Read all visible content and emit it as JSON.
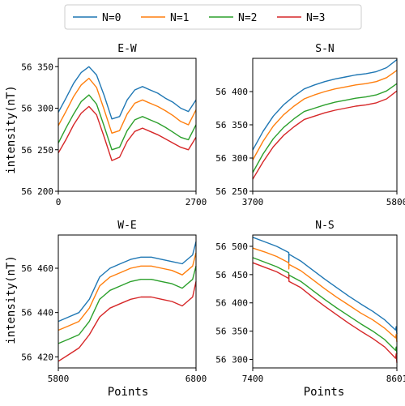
{
  "colors": {
    "N=0": "#1f77b4",
    "N=1": "#ff7f0e",
    "N=2": "#2ca02c",
    "N=3": "#d62728"
  },
  "legend": {
    "placement": "top-center",
    "entries": [
      "N=0",
      "N=1",
      "N=2",
      "N=3"
    ]
  },
  "shared_labels": {
    "xlabel": "Points",
    "ylabel": "intensity(nT)"
  },
  "chart_data": [
    {
      "type": "line",
      "title": "E-W",
      "xlim": [
        0,
        2700
      ],
      "ylim": [
        56200,
        56360
      ],
      "xticks": [
        0,
        2700
      ],
      "yticks": [
        56200,
        56250,
        56300,
        56350
      ],
      "x": [
        0,
        150,
        300,
        450,
        600,
        750,
        900,
        1050,
        1200,
        1350,
        1500,
        1650,
        1800,
        1950,
        2100,
        2250,
        2400,
        2550,
        2700
      ],
      "series": [
        {
          "name": "N=0",
          "values": [
            56295,
            56312,
            56330,
            56343,
            56350,
            56340,
            56315,
            56287,
            56290,
            56310,
            56322,
            56326,
            56322,
            56318,
            56312,
            56307,
            56300,
            56296,
            56310
          ]
        },
        {
          "name": "N=1",
          "values": [
            56279,
            56296,
            56314,
            56328,
            56336,
            56325,
            56298,
            56270,
            56273,
            56293,
            56306,
            56310,
            56306,
            56302,
            56297,
            56291,
            56284,
            56280,
            56298
          ]
        },
        {
          "name": "N=2",
          "values": [
            56258,
            56276,
            56293,
            56308,
            56316,
            56305,
            56278,
            56250,
            56253,
            56273,
            56286,
            56290,
            56286,
            56282,
            56277,
            56271,
            56265,
            56262,
            56280
          ]
        },
        {
          "name": "N=3",
          "values": [
            56246,
            56262,
            56280,
            56294,
            56302,
            56292,
            56265,
            56237,
            56241,
            56260,
            56272,
            56276,
            56272,
            56268,
            56263,
            56258,
            56253,
            56250,
            56265
          ]
        }
      ]
    },
    {
      "type": "line",
      "title": "S-N",
      "xlim": [
        3700,
        5800
      ],
      "ylim": [
        56250,
        56450
      ],
      "xticks": [
        3700,
        5800
      ],
      "yticks": [
        56250,
        56300,
        56350,
        56400
      ],
      "x": [
        3700,
        3850,
        4000,
        4150,
        4300,
        4450,
        4600,
        4750,
        4900,
        5050,
        5200,
        5350,
        5500,
        5650,
        5800
      ],
      "series": [
        {
          "name": "N=0",
          "values": [
            56312,
            56340,
            56363,
            56380,
            56393,
            56404,
            56410,
            56415,
            56419,
            56422,
            56425,
            56427,
            56430,
            56436,
            56448
          ]
        },
        {
          "name": "N=1",
          "values": [
            56297,
            56325,
            56348,
            56365,
            56378,
            56389,
            56395,
            56400,
            56404,
            56407,
            56410,
            56412,
            56415,
            56421,
            56432
          ]
        },
        {
          "name": "N=2",
          "values": [
            56278,
            56306,
            56329,
            56346,
            56359,
            56370,
            56375,
            56380,
            56384,
            56387,
            56390,
            56392,
            56395,
            56401,
            56412
          ]
        },
        {
          "name": "N=3",
          "values": [
            56268,
            56294,
            56317,
            56334,
            56347,
            56358,
            56363,
            56368,
            56372,
            56375,
            56378,
            56380,
            56383,
            56389,
            56401
          ]
        }
      ]
    },
    {
      "type": "line",
      "title": "W-E",
      "xlim": [
        5800,
        6800
      ],
      "ylim": [
        56415,
        56475
      ],
      "xticks": [
        5800,
        6800
      ],
      "yticks": [
        56420,
        56440,
        56460
      ],
      "x": [
        5800,
        5875,
        5950,
        6025,
        6100,
        6175,
        6250,
        6325,
        6400,
        6475,
        6550,
        6625,
        6700,
        6775,
        6800
      ],
      "series": [
        {
          "name": "N=0",
          "values": [
            56436,
            56438,
            56440,
            56446,
            56456,
            56460,
            56462,
            56464,
            56465,
            56465,
            56464,
            56463,
            56462,
            56466,
            56472
          ]
        },
        {
          "name": "N=1",
          "values": [
            56432,
            56434,
            56436,
            56442,
            56452,
            56456,
            56458,
            56460,
            56461,
            56461,
            56460,
            56459,
            56457,
            56461,
            56467
          ]
        },
        {
          "name": "N=2",
          "values": [
            56426,
            56428,
            56430,
            56436,
            56446,
            56450,
            56452,
            56454,
            56455,
            56455,
            56454,
            56453,
            56451,
            56455,
            56461
          ]
        },
        {
          "name": "N=3",
          "values": [
            56418,
            56421,
            56424,
            56430,
            56438,
            56442,
            56444,
            56446,
            56447,
            56447,
            56446,
            56445,
            56443,
            56447,
            56454
          ]
        }
      ]
    },
    {
      "type": "line",
      "title": "N-S",
      "xlim": [
        7400,
        8601
      ],
      "ylim": [
        56285,
        56520
      ],
      "xticks": [
        7400,
        8601
      ],
      "yticks": [
        56300,
        56350,
        56400,
        56450,
        56500
      ],
      "annotation": "sharp spike near x=7700 on all series",
      "x": [
        7400,
        7500,
        7600,
        7700,
        7701,
        7702,
        7800,
        7900,
        8000,
        8100,
        8200,
        8300,
        8400,
        8500,
        8590,
        8595,
        8601
      ],
      "series": [
        {
          "name": "N=0",
          "values": [
            56516,
            56508,
            56500,
            56489,
            56472,
            56486,
            56474,
            56458,
            56442,
            56427,
            56412,
            56398,
            56385,
            56370,
            56352,
            56358,
            56345
          ]
        },
        {
          "name": "N=1",
          "values": [
            56497,
            56490,
            56482,
            56471,
            56460,
            56468,
            56457,
            56441,
            56425,
            56410,
            56396,
            56382,
            56370,
            56355,
            56338,
            56344,
            56331
          ]
        },
        {
          "name": "N=2",
          "values": [
            56480,
            56472,
            56464,
            56453,
            56445,
            56449,
            56438,
            56422,
            56406,
            56391,
            56377,
            56363,
            56350,
            56335,
            56316,
            56322,
            56310
          ]
        },
        {
          "name": "N=3",
          "values": [
            56471,
            56463,
            56455,
            56443,
            56450,
            56438,
            56427,
            56410,
            56394,
            56379,
            56364,
            56350,
            56337,
            56322,
            56302,
            56310,
            56294
          ]
        }
      ]
    }
  ]
}
